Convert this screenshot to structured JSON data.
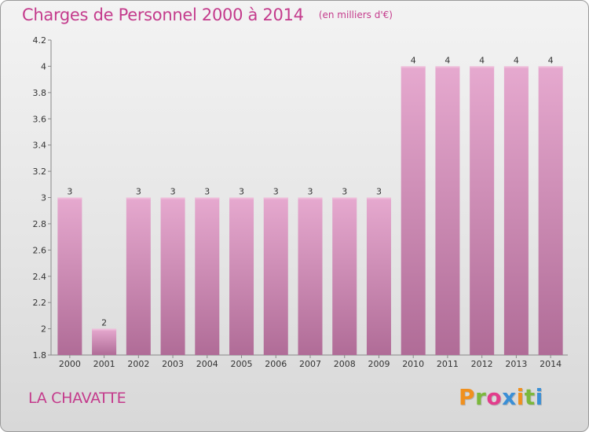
{
  "chart_data": {
    "type": "bar",
    "title": "Charges de Personnel 2000 à 2014",
    "subtitle": "(en milliers d'€)",
    "categories": [
      "2000",
      "2001",
      "2002",
      "2003",
      "2004",
      "2005",
      "2006",
      "2007",
      "2008",
      "2009",
      "2010",
      "2011",
      "2012",
      "2013",
      "2014"
    ],
    "values": [
      3,
      2,
      3,
      3,
      3,
      3,
      3,
      3,
      3,
      3,
      4,
      4,
      4,
      4,
      4
    ],
    "data_labels": [
      "3",
      "2",
      "3",
      "3",
      "3",
      "3",
      "3",
      "3",
      "3",
      "3",
      "4",
      "4",
      "4",
      "4",
      "4"
    ],
    "ylim": [
      1.8,
      4.2
    ],
    "yticks": [
      1.8,
      2,
      2.2,
      2.4,
      2.6,
      2.8,
      3,
      3.2,
      3.4,
      3.6,
      3.8,
      4,
      4.2
    ],
    "ytick_labels": [
      "1.8",
      "2",
      "2.2",
      "2.4",
      "2.6",
      "2.8",
      "3",
      "3.2",
      "3.4",
      "3.6",
      "3.8",
      "4",
      "4.2"
    ],
    "grid": false,
    "bar_color": "#d98fbd",
    "title_color": "#c43b8c"
  },
  "footer": {
    "commune": "LA CHAVATTE",
    "brand": "Proxiti",
    "brand_colors": [
      "#f0901e",
      "#7bb83c",
      "#e23d8c",
      "#3a8fd6",
      "#f0901e",
      "#7bb83c",
      "#3a8fd6"
    ]
  }
}
